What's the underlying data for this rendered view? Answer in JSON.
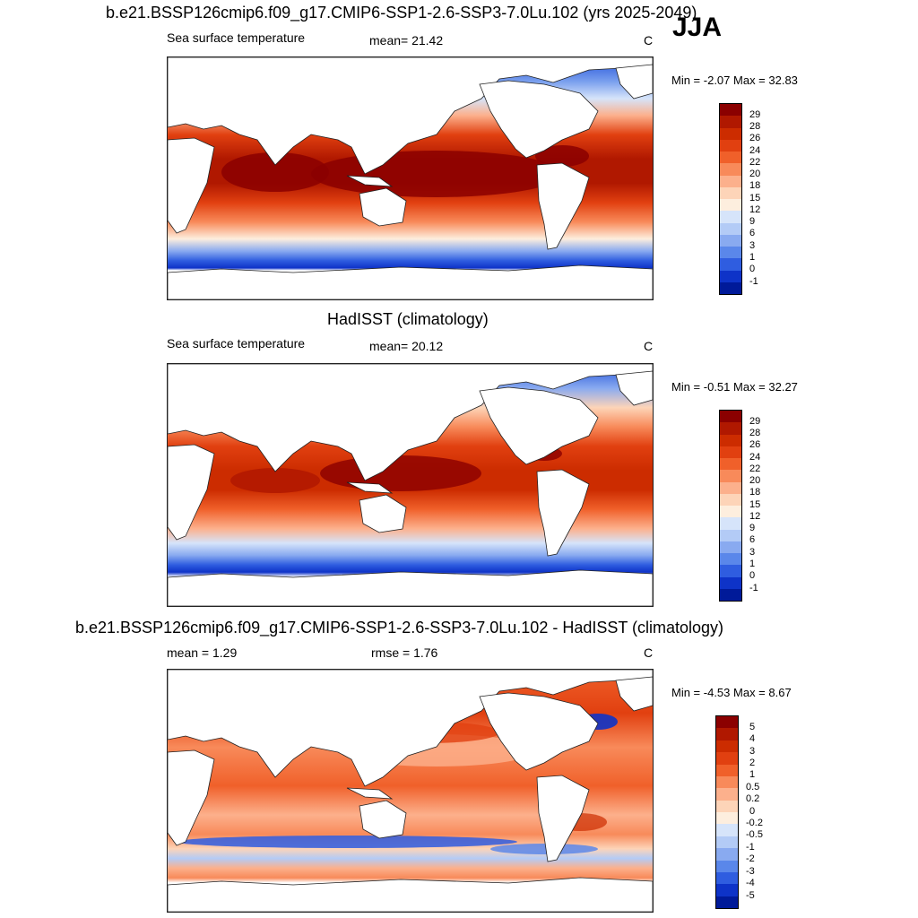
{
  "season": "JJA",
  "panel1": {
    "title": "b.e21.BSSP126cmip6.f09_g17.CMIP6-SSP1-2.6-SSP3-7.0Lu.102 (yrs 2025-2049)",
    "left_label": "Sea surface temperature",
    "mean_label": "mean=  21.42",
    "units": "C",
    "minmax": "Min =  -2.07 Max =  32.83",
    "levels": [
      "29",
      "28",
      "26",
      "24",
      "22",
      "20",
      "18",
      "15",
      "12",
      "9",
      "6",
      "3",
      "1",
      "0",
      "-1"
    ]
  },
  "panel2": {
    "title": "HadISST (climatology)",
    "left_label": "Sea surface temperature",
    "mean_label": "mean=  20.12",
    "units": "C",
    "minmax": "Min =  -0.51 Max =  32.27",
    "levels": [
      "29",
      "28",
      "26",
      "24",
      "22",
      "20",
      "18",
      "15",
      "12",
      "9",
      "6",
      "3",
      "1",
      "0",
      "-1"
    ]
  },
  "panel3": {
    "title": "b.e21.BSSP126cmip6.f09_g17.CMIP6-SSP1-2.6-SSP3-7.0Lu.102 - HadISST (climatology)",
    "mean_label": "mean =   1.29",
    "rmse_label": "rmse =   1.76",
    "units": "C",
    "minmax": "Min =  -4.53 Max =   8.67",
    "levels": [
      "5",
      "4",
      "3",
      "2",
      "1",
      "0.5",
      "0.2",
      "0",
      "-0.2",
      "-0.5",
      "-1",
      "-2",
      "-3",
      "-4",
      "-5"
    ]
  },
  "colors": {
    "sst_scale": [
      "#8b0000",
      "#b01800",
      "#cc2c00",
      "#e14010",
      "#f0602a",
      "#f88a5a",
      "#fcb08c",
      "#fdd4b8",
      "#fdeede",
      "#d6e4fa",
      "#b3cbf6",
      "#89aaf0",
      "#5a87ea",
      "#2f5de0",
      "#0e33c8",
      "#001a99"
    ],
    "diff_scale": [
      "#8b0000",
      "#b01800",
      "#cc2c00",
      "#e14010",
      "#f0602a",
      "#f88a5a",
      "#fcb08c",
      "#fdd4b8",
      "#fdeede",
      "#d6e4fa",
      "#b3cbf6",
      "#89aaf0",
      "#5a87ea",
      "#2f5de0",
      "#0e33c8",
      "#001a99"
    ],
    "land": "#ffffff",
    "coast": "#222222"
  }
}
